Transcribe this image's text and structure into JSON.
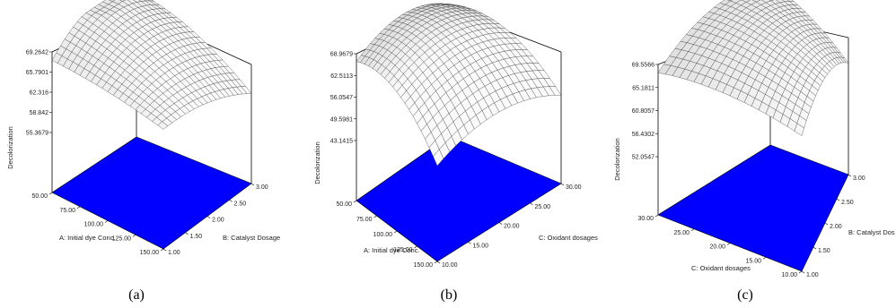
{
  "chart_data": [
    {
      "type": "surface",
      "panel_label": "(a)",
      "zlabel": "Decolorization",
      "x_label": "A: Initial dye Conc.",
      "y_label": "B: Catalyst Dosage",
      "x_ticks": [
        "50.00",
        "75.00",
        "100.00",
        "125.00",
        "150.00"
      ],
      "y_ticks": [
        "1.00",
        "1.50",
        "2.00",
        "2.50",
        "3.00"
      ],
      "z_ticks": [
        "55.3679",
        "58.842",
        "62.316",
        "65.7901",
        "69.2642"
      ],
      "xlim": [
        50,
        150
      ],
      "ylim": [
        1,
        3
      ],
      "zlim": [
        55.3679,
        69.2642
      ],
      "floor_color": "#0000ff",
      "surface_color": "#e6e6e6"
    },
    {
      "type": "surface",
      "panel_label": "(b)",
      "zlabel": "Decolorization",
      "x_label": "A: Initial dye Conc.",
      "y_label": "C: Oxidant dosages",
      "x_ticks": [
        "50.00",
        "75.00",
        "100.00",
        "125.00",
        "150.00"
      ],
      "y_ticks": [
        "10.00",
        "15.00",
        "20.00",
        "25.00",
        "30.00"
      ],
      "z_ticks": [
        "43.1415",
        "49.5981",
        "56.0547",
        "62.5113",
        "68.9679"
      ],
      "xlim": [
        50,
        150
      ],
      "ylim": [
        10,
        30
      ],
      "zlim": [
        43.1415,
        68.9679
      ],
      "floor_color": "#0000ff",
      "surface_color": "#e6e6e6"
    },
    {
      "type": "surface",
      "panel_label": "(c)",
      "zlabel": "Decolorization",
      "x_label": "C: Oxidant dosages",
      "y_label": "B: Catalyst Dos",
      "x_ticks": [
        "30.00",
        "25.00",
        "20.00",
        "15.00",
        "10.00"
      ],
      "y_ticks": [
        "1.00",
        "1.50",
        "2.00",
        "2.50",
        "3.00"
      ],
      "z_ticks": [
        "52.0547",
        "56.4302",
        "60.8057",
        "65.1811",
        "69.5566"
      ],
      "xlim": [
        30,
        10
      ],
      "ylim": [
        1,
        3
      ],
      "zlim": [
        52.0547,
        69.5566
      ],
      "floor_color": "#0000ff",
      "surface_color": "#e6e6e6"
    }
  ]
}
